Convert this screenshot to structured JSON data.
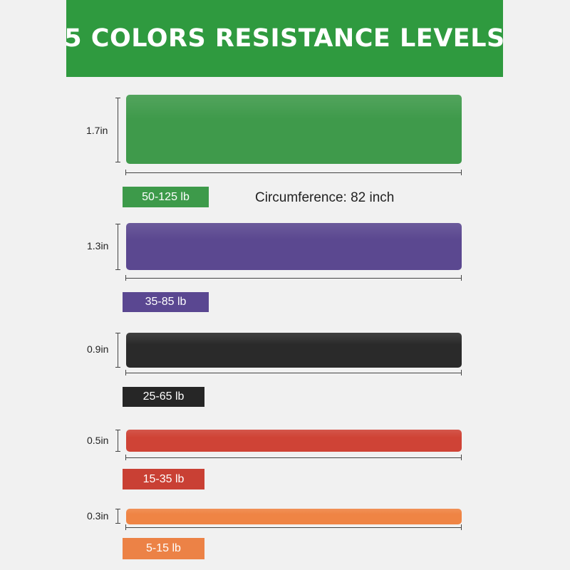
{
  "header": {
    "title": "5 COLORS RESISTANCE LEVELS",
    "color": "#2f9a3f"
  },
  "circumference": "Circumference: 82 inch",
  "bands": [
    {
      "thickness": "1.7in",
      "resistance": "50-125 lb",
      "color": "#3f9a4b",
      "tag_color": "#3d9a4a"
    },
    {
      "thickness": "1.3in",
      "resistance": "35-85 lb",
      "color": "#5b4890",
      "tag_color": "#5a4791"
    },
    {
      "thickness": "0.9in",
      "resistance": "25-65 lb",
      "color": "#2a2a2a",
      "tag_color": "#262626"
    },
    {
      "thickness": "0.5in",
      "resistance": "15-35 lb",
      "color": "#cf4336",
      "tag_color": "#c94034"
    },
    {
      "thickness": "0.3in",
      "resistance": "5-15 lb",
      "color": "#ef8444",
      "tag_color": "#ec8246"
    }
  ]
}
